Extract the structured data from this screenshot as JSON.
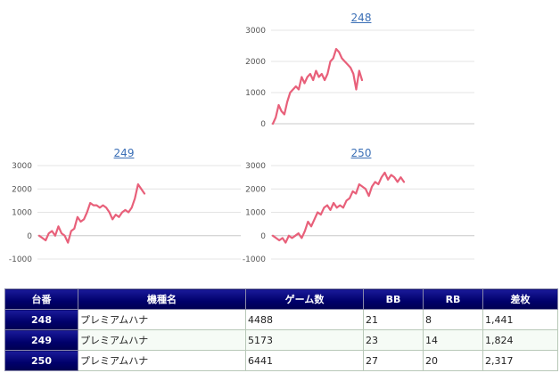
{
  "chart_data": [
    {
      "type": "line",
      "title": "248",
      "ylim": [
        0,
        3000
      ],
      "yticks": [
        "0",
        "1000",
        "2000",
        "3000"
      ],
      "grid": true,
      "color": "#e8607a",
      "values": [
        0,
        200,
        600,
        400,
        300,
        700,
        1000,
        1100,
        1200,
        1100,
        1500,
        1300,
        1500,
        1600,
        1400,
        1700,
        1500,
        1600,
        1400,
        1600,
        2000,
        2100,
        2400,
        2300,
        2100,
        2000,
        1900,
        1800,
        1600,
        1100,
        1700,
        1400
      ]
    },
    {
      "type": "line",
      "title": "249",
      "ylim": [
        -1000,
        3000
      ],
      "yticks": [
        "-1000",
        "0",
        "1000",
        "2000",
        "3000"
      ],
      "grid": true,
      "color": "#e8607a",
      "values": [
        0,
        -100,
        -200,
        100,
        200,
        0,
        400,
        100,
        0,
        -300,
        200,
        300,
        800,
        600,
        700,
        1000,
        1400,
        1300,
        1300,
        1200,
        1300,
        1200,
        1000,
        700,
        900,
        800,
        1000,
        1100,
        1000,
        1200,
        1600,
        2200,
        2000,
        1800
      ]
    },
    {
      "type": "line",
      "title": "250",
      "ylim": [
        -1000,
        3000
      ],
      "yticks": [
        "-1000",
        "0",
        "1000",
        "2000",
        "3000"
      ],
      "grid": true,
      "color": "#e8607a",
      "values": [
        0,
        -100,
        -200,
        -100,
        -300,
        0,
        -100,
        0,
        100,
        -100,
        200,
        600,
        400,
        700,
        1000,
        900,
        1200,
        1300,
        1100,
        1400,
        1200,
        1300,
        1200,
        1500,
        1600,
        1900,
        1800,
        2200,
        2100,
        2000,
        1700,
        2100,
        2300,
        2200,
        2500,
        2700,
        2400,
        2600,
        2500,
        2300,
        2500,
        2300
      ]
    }
  ],
  "table": {
    "headers": [
      "台番",
      "機種名",
      "ゲーム数",
      "BB",
      "RB",
      "差枚"
    ],
    "rows": [
      [
        "248",
        "プレミアムハナ",
        "4488",
        "21",
        "8",
        "1,441"
      ],
      [
        "249",
        "プレミアムハナ",
        "5173",
        "23",
        "14",
        "1,824"
      ],
      [
        "250",
        "プレミアムハナ",
        "6441",
        "27",
        "20",
        "2,317"
      ]
    ]
  }
}
